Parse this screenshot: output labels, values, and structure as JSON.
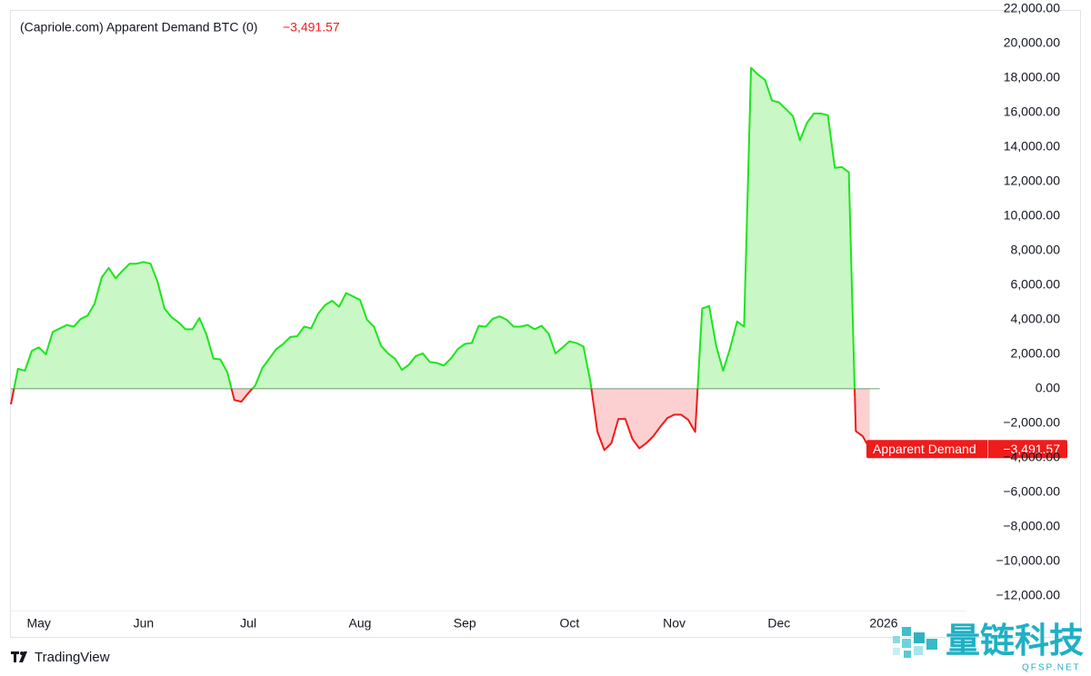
{
  "chart_data": {
    "type": "line",
    "title": "(Capriole.com) Apparent Demand BTC (0)",
    "categories": [
      null,
      null,
      null,
      null,
      "May",
      null,
      null,
      null,
      null,
      null,
      null,
      null,
      null,
      null,
      null,
      null,
      null,
      null,
      null,
      "Jun",
      null,
      null,
      null,
      null,
      null,
      null,
      null,
      null,
      null,
      null,
      null,
      null,
      null,
      null,
      "Jul",
      null,
      null,
      null,
      null,
      null,
      null,
      null,
      null,
      null,
      null,
      null,
      null,
      null,
      null,
      null,
      "Aug",
      null,
      null,
      null,
      null,
      null,
      null,
      null,
      null,
      null,
      null,
      null,
      null,
      null,
      null,
      "Sep",
      null,
      null,
      null,
      null,
      null,
      null,
      null,
      null,
      null,
      null,
      null,
      null,
      null,
      null,
      "Oct",
      null,
      null,
      null,
      null,
      null,
      null,
      null,
      null,
      null,
      null,
      null,
      null,
      null,
      null,
      "Nov",
      null,
      null,
      null,
      null,
      null,
      null,
      null,
      null,
      null,
      null,
      null,
      null,
      null,
      null,
      "Dec",
      null,
      null,
      null,
      null,
      null,
      null,
      null,
      null,
      null,
      null,
      null,
      null,
      null,
      null,
      "2026"
    ],
    "series": [
      {
        "name": "Apparent Demand",
        "color": "#1de51d",
        "negative_color": "#f01b1b",
        "fill_color": "#c9f7c6",
        "negative_fill_color": "#fcd0d0",
        "values": [
          -900,
          1160,
          1050,
          2200,
          2400,
          2000,
          3300,
          3500,
          3700,
          3600,
          4050,
          4250,
          4950,
          6450,
          7000,
          6400,
          6850,
          7250,
          7250,
          7350,
          7250,
          6200,
          4650,
          4150,
          3850,
          3450,
          3450,
          4100,
          3150,
          1750,
          1700,
          950,
          -650,
          -750,
          -250,
          200,
          1200,
          1750,
          2300,
          2600,
          3000,
          3050,
          3600,
          3500,
          4350,
          4850,
          5100,
          4750,
          5550,
          5350,
          5150,
          4000,
          3600,
          2500,
          2050,
          1750,
          1100,
          1400,
          1900,
          2050,
          1550,
          1500,
          1350,
          1750,
          2300,
          2600,
          2650,
          3650,
          3600,
          4050,
          4200,
          4000,
          3600,
          3600,
          3700,
          3450,
          3650,
          3200,
          2050,
          2400,
          2750,
          2650,
          2450,
          400,
          -2500,
          -3550,
          -3150,
          -1750,
          -1750,
          -2900,
          -3450,
          -3150,
          -2750,
          -2200,
          -1700,
          -1500,
          -1500,
          -1800,
          -2500,
          4650,
          4800,
          2500,
          1050,
          2350,
          3900,
          3600,
          18600,
          18200,
          17900,
          16700,
          16600,
          16200,
          15800,
          14400,
          15400,
          15950,
          15950,
          15850,
          12800,
          12850,
          12550,
          -2450,
          -2750,
          -3491.57,
          null,
          null
        ],
        "value_labels": [
          null,
          null,
          null,
          null,
          null,
          null,
          null,
          null,
          null,
          null,
          null,
          null,
          null,
          null,
          null,
          null,
          null,
          null,
          null,
          null,
          null,
          null,
          null,
          null,
          null,
          null,
          null,
          null,
          null,
          null,
          null,
          null,
          null,
          null,
          null,
          null,
          null,
          null,
          null,
          null,
          null,
          null,
          null,
          null,
          null,
          null,
          null,
          null,
          null,
          null,
          null,
          null,
          null,
          null,
          null,
          null,
          null,
          null,
          null,
          null,
          null,
          null,
          null,
          null,
          null,
          null,
          null,
          null,
          null,
          null,
          null,
          null,
          null,
          null,
          null,
          null,
          null,
          null,
          null,
          null,
          null,
          null,
          null,
          null,
          null,
          null,
          null,
          null,
          null,
          null,
          null,
          null,
          null,
          null,
          null,
          null,
          null,
          null,
          null,
          null,
          null,
          null,
          null,
          null,
          null,
          null,
          null,
          null,
          null,
          null,
          null,
          null,
          null,
          null,
          null,
          null,
          null,
          null,
          null,
          null,
          null,
          null,
          null,
          "−3,491.57",
          null,
          null
        ]
      }
    ],
    "ylim": [
      -12850,
      22000
    ],
    "yticks": [
      {
        "value": 22000,
        "label": "22,000.00"
      },
      {
        "value": 20000,
        "label": "20,000.00"
      },
      {
        "value": 18000,
        "label": "18,000.00"
      },
      {
        "value": 16000,
        "label": "16,000.00"
      },
      {
        "value": 14000,
        "label": "14,000.00"
      },
      {
        "value": 12000,
        "label": "12,000.00"
      },
      {
        "value": 10000,
        "label": "10,000.00"
      },
      {
        "value": 8000,
        "label": "8,000.00"
      },
      {
        "value": 6000,
        "label": "6,000.00"
      },
      {
        "value": 4000,
        "label": "4,000.00"
      },
      {
        "value": 2000,
        "label": "2,000.00"
      },
      {
        "value": 0,
        "label": "0.00"
      },
      {
        "value": -2000,
        "label": "−2,000.00"
      },
      {
        "value": -4000,
        "label": "−4,000.00"
      },
      {
        "value": -6000,
        "label": "−6,000.00"
      },
      {
        "value": -8000,
        "label": "−8,000.00"
      },
      {
        "value": -10000,
        "label": "−10,000.00"
      },
      {
        "value": -12000,
        "label": "−12,000.00"
      }
    ],
    "grid": false,
    "branding": "TradingView",
    "watermark": {
      "text": "量链科技",
      "subtext": "QFSP.NET"
    }
  }
}
